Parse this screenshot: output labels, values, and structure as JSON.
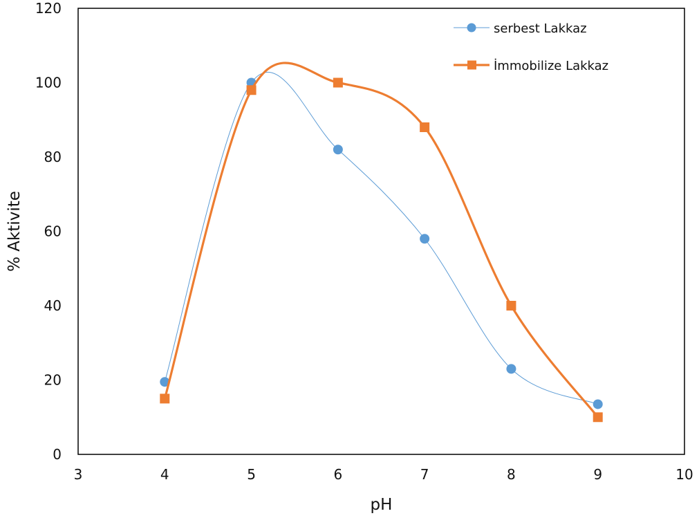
{
  "chart_data": {
    "type": "line",
    "title": "",
    "xlabel": "pH",
    "ylabel": "% Aktivite",
    "xlim": [
      3,
      10
    ],
    "ylim": [
      0,
      120
    ],
    "xticks": [
      3,
      4,
      5,
      6,
      7,
      8,
      9,
      10
    ],
    "yticks": [
      0,
      20,
      40,
      60,
      80,
      100,
      120
    ],
    "grid": false,
    "legend_position": "top-right",
    "series": [
      {
        "name": "serbest Lakkaz",
        "color": "#5B9BD5",
        "marker": "circle",
        "line": "thin-smooth",
        "x": [
          4,
          5,
          6,
          7,
          8,
          9
        ],
        "y": [
          19.5,
          100,
          82,
          58,
          23,
          13.5
        ]
      },
      {
        "name": "İmmobilize Lakkaz",
        "color": "#ED7D31",
        "marker": "square",
        "line": "thick-smooth",
        "x": [
          4,
          5,
          6,
          7,
          8,
          9
        ],
        "y": [
          15,
          98,
          100,
          88,
          40,
          10
        ]
      }
    ]
  }
}
